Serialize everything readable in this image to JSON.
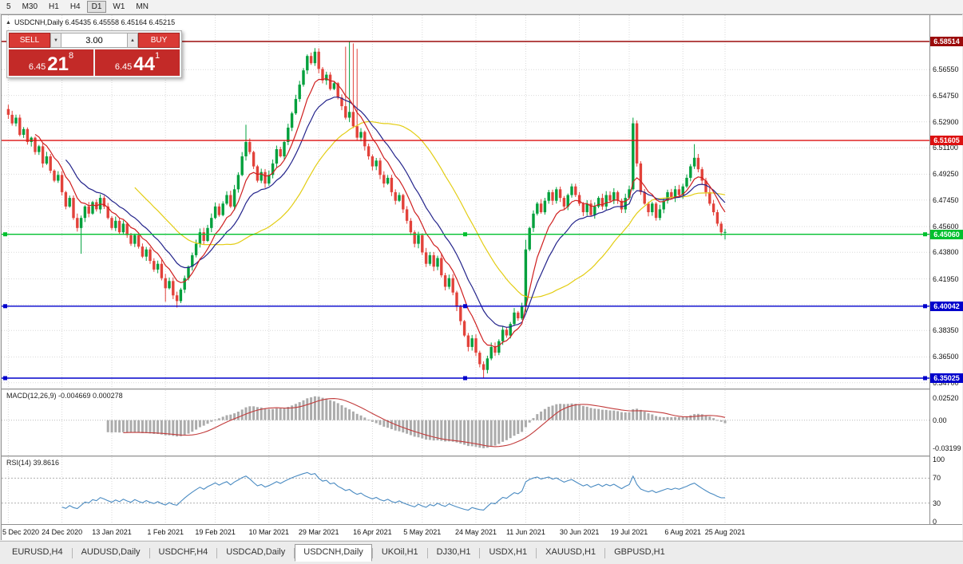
{
  "toolbar": {
    "timeframes": [
      {
        "label": "5",
        "active": false
      },
      {
        "label": "M30",
        "active": false
      },
      {
        "label": "H1",
        "active": false
      },
      {
        "label": "H4",
        "active": false
      },
      {
        "label": "D1",
        "active": true
      },
      {
        "label": "W1",
        "active": false
      },
      {
        "label": "MN",
        "active": false
      }
    ]
  },
  "chart_header": {
    "collapse_icon": "▲",
    "title": "USDCNH,Daily 6.45435 6.45558 6.45164 6.45215"
  },
  "trade_panel": {
    "sell_label": "SELL",
    "buy_label": "BUY",
    "volume": "3.00",
    "spin_down_icon": "▼",
    "spin_up_icon": "▲",
    "sell_price_small": "6.45",
    "sell_price_big": "21",
    "sell_price_sup": "8",
    "buy_price_small": "6.45",
    "buy_price_big": "44",
    "buy_price_sup": "1",
    "button_color": "#d93a35",
    "price_box_color": "#c32a28"
  },
  "macd": {
    "label": "MACD(12,26,9) -0.004669 0.000278",
    "axis_ticks": [
      {
        "label": "0.02520",
        "value": 0.0252
      },
      {
        "label": "0.00",
        "value": 0.0
      },
      {
        "label": "-0.03199",
        "value": -0.03199
      }
    ],
    "hist_color": "#ababab",
    "signal_color": "#c23b3b"
  },
  "rsi": {
    "label": "RSI(14) 39.8616",
    "axis_ticks": [
      {
        "label": "100",
        "value": 100
      },
      {
        "label": "70",
        "value": 70
      },
      {
        "label": "30",
        "value": 30
      },
      {
        "label": "0",
        "value": 0
      }
    ],
    "level_lines": [
      70,
      30
    ],
    "line_color": "#4a8bc2"
  },
  "tabbar": {
    "tabs": [
      {
        "label": "EURUSD,H4",
        "active": false
      },
      {
        "label": "AUDUSD,Daily",
        "active": false
      },
      {
        "label": "USDCHF,H4",
        "active": false
      },
      {
        "label": "USDCAD,Daily",
        "active": false
      },
      {
        "label": "USDCNH,Daily",
        "active": true
      },
      {
        "label": "UKOil,H1",
        "active": false
      },
      {
        "label": "DJ30,H1",
        "active": false
      },
      {
        "label": "USDX,H1",
        "active": false
      },
      {
        "label": "XAUUSD,H1",
        "active": false
      },
      {
        "label": "GBPUSD,H1",
        "active": false
      }
    ]
  },
  "chart_data": {
    "type": "candlestick",
    "symbol": "USDCNH",
    "timeframe": "Daily",
    "ohlc_display": {
      "open": "6.45435",
      "high": "6.45558",
      "low": "6.45164",
      "close": "6.45215"
    },
    "colors": {
      "up": "#00a03c",
      "down": "#e2423a",
      "grid": "#d9d9d9"
    },
    "first_open": 6.538,
    "closes": [
      6.534,
      6.528,
      6.532,
      6.52,
      6.524,
      6.515,
      6.518,
      6.508,
      6.512,
      6.5,
      6.505,
      6.495,
      6.488,
      6.492,
      6.48,
      6.47,
      6.476,
      6.462,
      6.455,
      6.462,
      6.47,
      6.465,
      6.473,
      6.468,
      6.476,
      6.47,
      6.462,
      6.455,
      6.46,
      6.452,
      6.458,
      6.45,
      6.444,
      6.45,
      6.442,
      6.435,
      6.44,
      6.432,
      6.426,
      6.43,
      6.42,
      6.413,
      6.418,
      6.408,
      6.404,
      6.412,
      6.42,
      6.428,
      6.436,
      6.444,
      6.452,
      6.446,
      6.455,
      6.462,
      6.47,
      6.464,
      6.472,
      6.478,
      6.47,
      6.482,
      6.492,
      6.505,
      6.515,
      6.508,
      6.498,
      6.488,
      6.494,
      6.486,
      6.492,
      6.5,
      6.51,
      6.505,
      6.515,
      6.525,
      6.535,
      6.545,
      6.555,
      6.565,
      6.575,
      6.57,
      6.578,
      6.566,
      6.558,
      6.562,
      6.552,
      6.556,
      6.546,
      6.54,
      6.532,
      6.536,
      6.526,
      6.518,
      6.522,
      6.512,
      6.505,
      6.498,
      6.502,
      6.492,
      6.486,
      6.49,
      6.48,
      6.474,
      6.478,
      6.468,
      6.46,
      6.452,
      6.444,
      6.45,
      6.438,
      6.43,
      6.436,
      6.428,
      6.434,
      6.422,
      6.414,
      6.42,
      6.41,
      6.4,
      6.39,
      6.38,
      6.372,
      6.378,
      6.368,
      6.36,
      6.356,
      6.364,
      6.372,
      6.368,
      6.376,
      6.384,
      6.38,
      6.388,
      6.396,
      6.392,
      6.4,
      6.44,
      6.455,
      6.465,
      6.472,
      6.466,
      6.474,
      6.48,
      6.474,
      6.482,
      6.476,
      6.47,
      6.478,
      6.484,
      6.478,
      6.472,
      6.466,
      6.472,
      6.464,
      6.47,
      6.476,
      6.47,
      6.478,
      6.474,
      6.48,
      6.474,
      6.468,
      6.476,
      6.482,
      6.528,
      6.5,
      6.48,
      6.472,
      6.466,
      6.472,
      6.462,
      6.468,
      6.474,
      6.48,
      6.476,
      6.482,
      6.478,
      6.484,
      6.49,
      6.498,
      6.504,
      6.496,
      6.488,
      6.48,
      6.472,
      6.466,
      6.458,
      6.452,
      6.4522
    ],
    "wick_overrides": {
      "19": {
        "l": 6.437
      },
      "41": {
        "l": 6.4035
      },
      "44": {
        "l": 6.3995
      },
      "62": {
        "h": 6.527
      },
      "88": {
        "h": 6.5815
      },
      "89": {
        "h": 6.585
      },
      "90": {
        "h": 6.5838
      },
      "91": {
        "h": 6.58
      },
      "124": {
        "l": 6.3505
      },
      "135": {
        "l": 6.3965,
        "h": 6.4468
      },
      "163": {
        "h": 6.532
      },
      "179": {
        "h": 6.5135
      },
      "187": {
        "l": 6.447
      }
    },
    "y_axis": {
      "min": 6.343,
      "max": 6.6035,
      "ticks": [
        6.5655,
        6.5475,
        6.529,
        6.511,
        6.4925,
        6.4745,
        6.456,
        6.438,
        6.4195,
        6.4015,
        6.3835,
        6.365,
        6.347
      ]
    },
    "x_axis": {
      "labels": [
        "5 Dec 2020",
        "24 Dec 2020",
        "13 Jan 2021",
        "1 Feb 2021",
        "19 Feb 2021",
        "10 Mar 2021",
        "29 Mar 2021",
        "16 Apr 2021",
        "5 May 2021",
        "24 May 2021",
        "11 Jun 2021",
        "30 Jun 2021",
        "19 Jul 2021",
        "6 Aug 2021",
        "25 Aug 2021"
      ],
      "indices": [
        0,
        14,
        27,
        41,
        54,
        68,
        81,
        95,
        108,
        122,
        135,
        149,
        162,
        176,
        187
      ]
    },
    "levels": [
      {
        "price": 6.58514,
        "color": "#9c0b0b",
        "handles": false
      },
      {
        "price": 6.51605,
        "color": "#dd1111",
        "handles": false
      },
      {
        "price": 6.4506,
        "color": "#00c02e",
        "handles": true
      },
      {
        "price": 6.40042,
        "color": "#0000cc",
        "handles": true
      },
      {
        "price": 6.35025,
        "color": "#0000cc",
        "handles": true
      }
    ],
    "moving_averages": [
      {
        "name": "slow",
        "type": "sma",
        "period": 34,
        "color": "#e3cd13"
      },
      {
        "name": "mid",
        "type": "ema",
        "period": 16,
        "color": "#23238b"
      },
      {
        "name": "fast",
        "type": "ema",
        "period": 8,
        "color": "#cf1f1f"
      }
    ],
    "macd_range": {
      "min": -0.04,
      "max": 0.034
    },
    "rsi_range": {
      "min": -4,
      "max": 104
    }
  }
}
